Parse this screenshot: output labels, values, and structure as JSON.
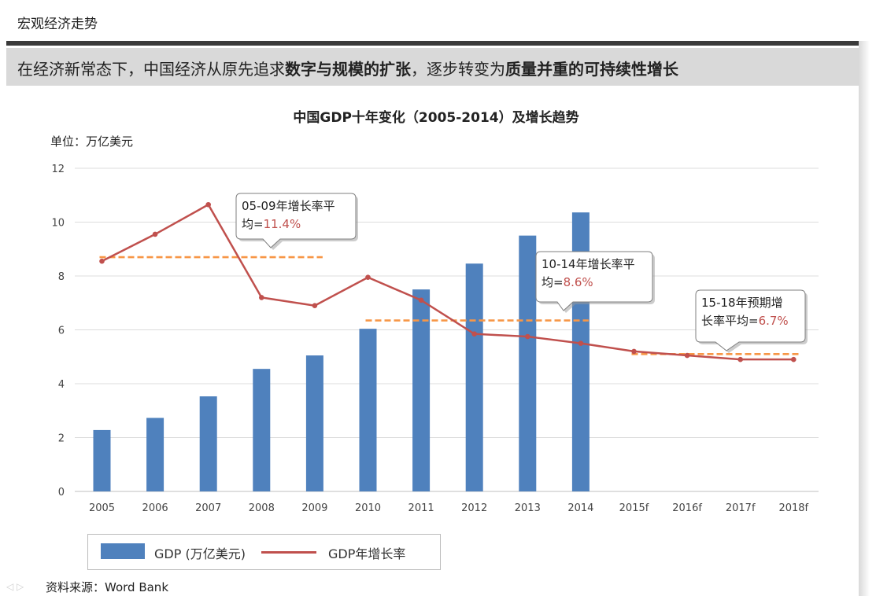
{
  "header": {
    "title": "宏观经济走势"
  },
  "banner": {
    "part1": "在经济新常态下，中国经济从原先追求",
    "bold1": "数字与规模的扩张",
    "part2": "，逐步转变为",
    "bold2": "质量并重的可持续性增长"
  },
  "chart_data": {
    "type": "bar+line",
    "title": "中国GDP十年变化（2005-2014）及增长趋势",
    "unit_label": "单位：万亿美元",
    "categories": [
      "2005",
      "2006",
      "2007",
      "2008",
      "2009",
      "2010",
      "2011",
      "2012",
      "2013",
      "2014",
      "2015f",
      "2016f",
      "2017f",
      "2018f"
    ],
    "ylim": [
      0,
      12
    ],
    "yticks": [
      "0",
      "2",
      "4",
      "6",
      "8",
      "10",
      "12"
    ],
    "grid": true,
    "series": [
      {
        "name": "GDP (万亿美元)",
        "type": "bar",
        "color": "#4f81bd",
        "values": [
          2.28,
          2.73,
          3.53,
          4.55,
          5.05,
          6.04,
          7.5,
          8.46,
          9.5,
          10.36,
          null,
          null,
          null,
          null
        ]
      },
      {
        "name": "GDP年增长率",
        "type": "line",
        "color": "#c0504d",
        "values": [
          8.55,
          9.55,
          10.65,
          7.2,
          6.9,
          7.95,
          7.1,
          5.85,
          5.75,
          5.5,
          5.2,
          5.05,
          4.9,
          4.9
        ]
      }
    ],
    "averages": [
      {
        "from": "2005",
        "to": "2009",
        "value": 8.7,
        "color": "#f79646"
      },
      {
        "from": "2010",
        "to": "2014",
        "value": 6.35,
        "color": "#f79646"
      },
      {
        "from": "2015f",
        "to": "2018f",
        "value": 5.1,
        "color": "#f79646"
      }
    ],
    "callouts": [
      {
        "line1": "05-09年增长率平",
        "line2_prefix": "均=",
        "line2_value": "11.4%"
      },
      {
        "line1": "10-14年增长率平",
        "line2_prefix": "均=",
        "line2_value": "8.6%"
      },
      {
        "line1": "15-18年预期增",
        "line2_prefix": "长率平均=",
        "line2_value": "6.7%"
      }
    ],
    "legend": {
      "placement": "bottom-left",
      "bar_label": "GDP (万亿美元)",
      "line_label": "GDP年增长率"
    }
  },
  "footer": {
    "source": "资料来源：Word Bank",
    "nav": "◁ ▷"
  }
}
